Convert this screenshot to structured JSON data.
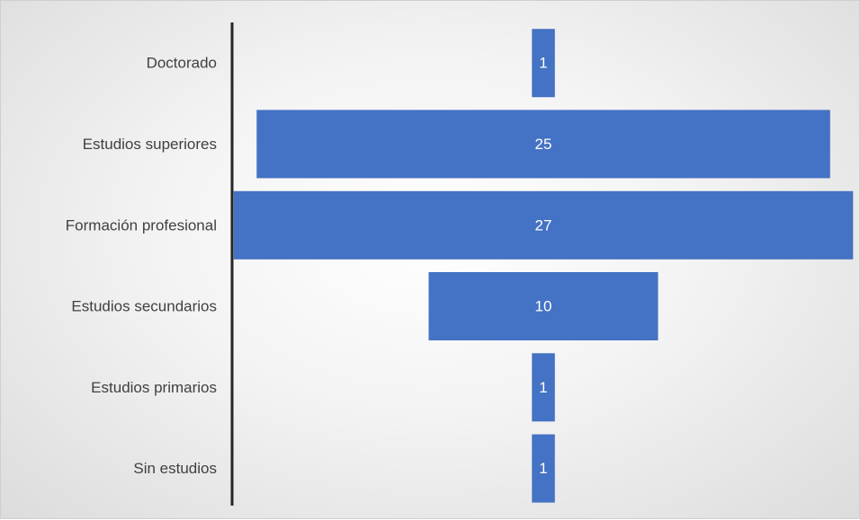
{
  "chart_data": {
    "type": "bar",
    "orientation": "horizontal",
    "style": "funnel",
    "categories": [
      "Doctorado",
      "Estudios superiores",
      "Formación profesional",
      "Estudios secundarios",
      "Estudios primarios",
      "Sin estudios"
    ],
    "values": [
      1,
      25,
      27,
      10,
      1,
      1
    ],
    "data_labels": [
      "1",
      "25",
      "27",
      "10",
      "1",
      "1"
    ],
    "title": "",
    "xlabel": "",
    "ylabel": "",
    "grid": false,
    "legend": "none",
    "bar_color": "#4472c4",
    "label_color": "#404040",
    "value_label_color": "#ffffff",
    "axis_color": "#262626"
  }
}
